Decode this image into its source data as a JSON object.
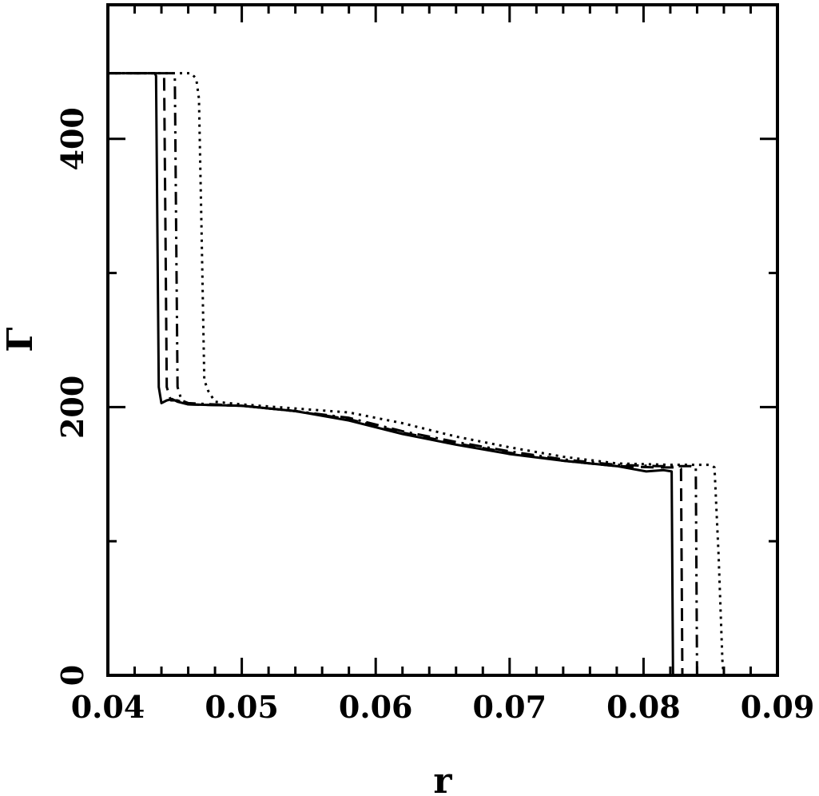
{
  "chart_data": {
    "type": "line",
    "xlabel": "r",
    "ylabel": "Γ",
    "xlim": [
      0.04,
      0.09
    ],
    "ylim": [
      0,
      500
    ],
    "x_ticks": [
      0.04,
      0.05,
      0.06,
      0.07,
      0.08,
      0.09
    ],
    "x_tick_labels": [
      "0.04",
      "0.05",
      "0.06",
      "0.07",
      "0.08",
      "0.09"
    ],
    "x_minor_step": 0.002,
    "y_ticks": [
      0,
      200,
      400
    ],
    "y_tick_labels": [
      "0",
      "200",
      "400"
    ],
    "y_minor_step": 100,
    "grid": false,
    "legend": "none",
    "series": [
      {
        "style": "solid",
        "x": [
          0.04,
          0.0435,
          0.0436,
          0.0437,
          0.0438,
          0.044,
          0.0444,
          0.0448,
          0.0452,
          0.046,
          0.05,
          0.054,
          0.058,
          0.062,
          0.066,
          0.07,
          0.074,
          0.078,
          0.0802,
          0.0815,
          0.0821,
          0.0822,
          0.0823,
          0.09
        ],
        "y": [
          449,
          449,
          447,
          330,
          215,
          203,
          205,
          206,
          204,
          202,
          201,
          197,
          190,
          180,
          172,
          165,
          160,
          156,
          152,
          153,
          152,
          0,
          0,
          0
        ]
      },
      {
        "style": "dashed",
        "x": [
          0.04,
          0.0441,
          0.0442,
          0.0443,
          0.0444,
          0.0447,
          0.0452,
          0.046,
          0.05,
          0.054,
          0.058,
          0.062,
          0.066,
          0.07,
          0.074,
          0.078,
          0.081,
          0.0825,
          0.0828,
          0.0829,
          0.09
        ],
        "y": [
          449,
          449,
          447,
          330,
          215,
          205,
          205,
          202,
          201,
          197,
          191,
          181,
          173,
          166,
          160,
          156,
          155,
          155,
          154,
          0,
          0
        ]
      },
      {
        "style": "dashdot",
        "x": [
          0.04,
          0.0449,
          0.045,
          0.0451,
          0.0452,
          0.0455,
          0.046,
          0.05,
          0.054,
          0.058,
          0.062,
          0.066,
          0.07,
          0.074,
          0.078,
          0.081,
          0.0835,
          0.0839,
          0.084,
          0.09
        ],
        "y": [
          449,
          449,
          447,
          330,
          215,
          205,
          203,
          201,
          197,
          192,
          182,
          174,
          167,
          161,
          157,
          156,
          156,
          155,
          0,
          0
        ]
      },
      {
        "style": "dotted",
        "x": [
          0.04,
          0.0462,
          0.0466,
          0.0468,
          0.047,
          0.0472,
          0.0475,
          0.048,
          0.05,
          0.054,
          0.058,
          0.062,
          0.066,
          0.07,
          0.074,
          0.078,
          0.082,
          0.085,
          0.0853,
          0.0856,
          0.0859,
          0.086,
          0.09
        ],
        "y": [
          449,
          449,
          445,
          430,
          330,
          220,
          212,
          204,
          202,
          199,
          196,
          188,
          178,
          170,
          163,
          158,
          157,
          157,
          155,
          90,
          8,
          0,
          0
        ]
      }
    ]
  }
}
